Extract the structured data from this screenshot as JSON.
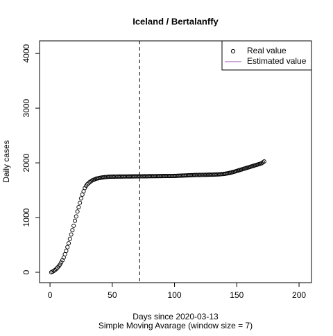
{
  "chart_data": {
    "type": "scatter",
    "title": "Iceland / Bertalanffy",
    "xlabel": "Days since 2020-03-13",
    "subtitle": "Simple Moving Avarage (window size = 7)",
    "ylabel": "Daily cases",
    "xlim": [
      -8.4,
      210
    ],
    "ylim": [
      -190,
      4230
    ],
    "xticks": [
      0,
      50,
      100,
      150,
      200
    ],
    "yticks": [
      0,
      1000,
      2000,
      3000,
      4000
    ],
    "vline": 72,
    "legend": "top-right",
    "series": [
      {
        "name": "Real value",
        "color": "#000000",
        "x": [
          1,
          2,
          3,
          4,
          5,
          6,
          7,
          8,
          9,
          10,
          11,
          12,
          13,
          14,
          15,
          16,
          17,
          18,
          19,
          20,
          21,
          22,
          23,
          24,
          25,
          26,
          27,
          28,
          29,
          30,
          31,
          32,
          33,
          34,
          35,
          36,
          37,
          38,
          39,
          40,
          41,
          42,
          43,
          44,
          45,
          46,
          47,
          48,
          49,
          50,
          51,
          52,
          53,
          54,
          55,
          56,
          57,
          58,
          59,
          60,
          61,
          62,
          63,
          64,
          65,
          66,
          67,
          68,
          69,
          70,
          71,
          72,
          73,
          74,
          75,
          76,
          77,
          78,
          79,
          80,
          81,
          82,
          83,
          84,
          85,
          86,
          87,
          88,
          89,
          90,
          91,
          92,
          93,
          94,
          95,
          96,
          97,
          98,
          99,
          100,
          101,
          102,
          103,
          104,
          105,
          106,
          107,
          108,
          109,
          110,
          111,
          112,
          113,
          114,
          115,
          116,
          117,
          118,
          119,
          120,
          121,
          122,
          123,
          124,
          125,
          126,
          127,
          128,
          129,
          130,
          131,
          132,
          133,
          134,
          135,
          136,
          137,
          138,
          139,
          140,
          141,
          142,
          143,
          144,
          145,
          146,
          147,
          148,
          149,
          150,
          151,
          152,
          153,
          154,
          155,
          156,
          157,
          158,
          159,
          160,
          161,
          162,
          163,
          164,
          165,
          166,
          167,
          168,
          169,
          170,
          171,
          172
        ],
        "values": [
          0,
          10,
          25,
          40,
          60,
          85,
          110,
          140,
          180,
          220,
          270,
          330,
          390,
          460,
          530,
          610,
          690,
          770,
          850,
          940,
          1020,
          1110,
          1190,
          1270,
          1350,
          1420,
          1480,
          1540,
          1580,
          1610,
          1630,
          1650,
          1665,
          1680,
          1690,
          1700,
          1710,
          1715,
          1720,
          1725,
          1730,
          1733,
          1736,
          1739,
          1741,
          1743,
          1745,
          1746,
          1747,
          1748,
          1748,
          1749,
          1749,
          1749,
          1750,
          1750,
          1750,
          1750,
          1751,
          1751,
          1751,
          1751,
          1752,
          1752,
          1752,
          1752,
          1753,
          1753,
          1753,
          1753,
          1754,
          1754,
          1754,
          1754,
          1755,
          1755,
          1755,
          1755,
          1756,
          1756,
          1756,
          1756,
          1757,
          1757,
          1757,
          1757,
          1758,
          1758,
          1758,
          1758,
          1759,
          1759,
          1759,
          1759,
          1760,
          1760,
          1760,
          1760,
          1761,
          1761,
          1762,
          1763,
          1764,
          1765,
          1766,
          1767,
          1768,
          1769,
          1770,
          1771,
          1772,
          1773,
          1774,
          1775,
          1776,
          1777,
          1778,
          1778,
          1779,
          1779,
          1780,
          1780,
          1781,
          1781,
          1782,
          1782,
          1783,
          1783,
          1784,
          1784,
          1785,
          1786,
          1787,
          1788,
          1789,
          1790,
          1792,
          1794,
          1796,
          1798,
          1802,
          1806,
          1810,
          1815,
          1820,
          1826,
          1832,
          1838,
          1845,
          1852,
          1859,
          1866,
          1873,
          1880,
          1887,
          1894,
          1901,
          1908,
          1915,
          1922,
          1929,
          1936,
          1943,
          1950,
          1957,
          1964,
          1971,
          1978,
          1985,
          1993,
          2010,
          2025
        ]
      },
      {
        "name": "Estimated value",
        "color": "#9a4fa8"
      }
    ]
  }
}
